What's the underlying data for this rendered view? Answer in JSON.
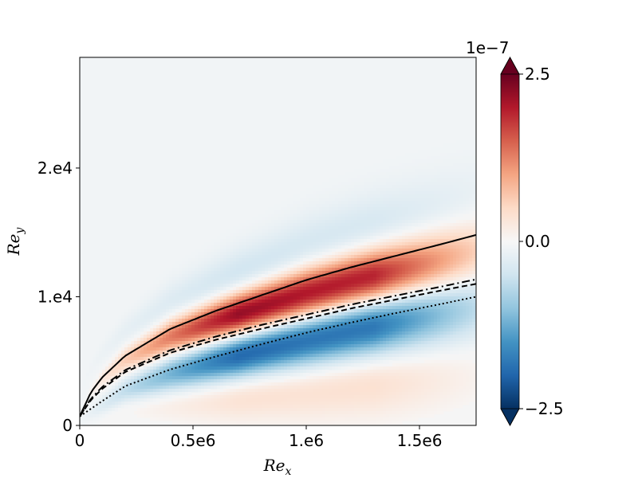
{
  "chart_data": {
    "type": "heatmap",
    "title": "",
    "xlabel": "Re_x",
    "ylabel": "Re_y",
    "xlabel_main": "Re",
    "xlabel_sub": "x",
    "ylabel_main": "Re",
    "ylabel_sub": "y",
    "xlim": [
      0,
      1750000
    ],
    "ylim": [
      0,
      28600
    ],
    "x_ticks": [
      {
        "value": 0,
        "label": "0"
      },
      {
        "value": 500000,
        "label": "0.5e6"
      },
      {
        "value": 1000000,
        "label": "1.e6"
      },
      {
        "value": 1500000,
        "label": "1.5e6"
      }
    ],
    "y_ticks": [
      {
        "value": 0,
        "label": "0"
      },
      {
        "value": 10000,
        "label": "1.e4"
      },
      {
        "value": 20000,
        "label": "2.e4"
      }
    ],
    "colorbar": {
      "colormap": "RdBu_r",
      "range": [
        -2.5e-07,
        2.5e-07
      ],
      "extend": "both",
      "multiplier_label": "1e−7",
      "ticks": [
        {
          "value": 2.5,
          "label": "2.5"
        },
        {
          "value": 0.0,
          "label": "0.0"
        },
        {
          "value": -2.5,
          "label": "−2.5"
        }
      ]
    },
    "field_bands": [
      {
        "sign": "positive",
        "description_value": "upper red band near solid curve",
        "peak_x": 950000,
        "peak_y": 9700,
        "peak_value": 2.5e-07
      },
      {
        "sign": "negative",
        "description_value": "lower blue band below dotted curve",
        "peak_x": 900000,
        "peak_y": 6000,
        "peak_value": -2e-07
      },
      {
        "sign": "positive",
        "description_value": "weak lower red band",
        "peak_x": 1000000,
        "peak_y": 3000,
        "peak_value": 5e-08
      },
      {
        "sign": "negative",
        "description_value": "weak upper blue band",
        "peak_x": 850000,
        "peak_y": 13500,
        "peak_value": -5e-08
      }
    ],
    "series": [
      {
        "style": "solid",
        "x": [
          0,
          50000,
          100000,
          200000,
          400000,
          600000,
          800000,
          1000000,
          1200000,
          1400000,
          1600000,
          1750000
        ],
        "y": [
          700,
          2600,
          3750,
          5400,
          7500,
          8900,
          10100,
          11300,
          12300,
          13200,
          14100,
          14800
        ]
      },
      {
        "style": "dashdot",
        "x": [
          0,
          50000,
          100000,
          200000,
          400000,
          600000,
          800000,
          1000000,
          1200000,
          1400000,
          1600000,
          1750000
        ],
        "y": [
          700,
          2100,
          3000,
          4300,
          5850,
          6900,
          7800,
          8600,
          9400,
          10100,
          10800,
          11350
        ]
      },
      {
        "style": "dashed",
        "x": [
          0,
          50000,
          100000,
          200000,
          400000,
          600000,
          800000,
          1000000,
          1200000,
          1400000,
          1600000,
          1750000
        ],
        "y": [
          700,
          2000,
          2850,
          4150,
          5650,
          6650,
          7500,
          8300,
          9100,
          9800,
          10500,
          11000
        ]
      },
      {
        "style": "dotted",
        "x": [
          0,
          50000,
          100000,
          200000,
          400000,
          600000,
          800000,
          1000000,
          1200000,
          1400000,
          1600000,
          1750000
        ],
        "y": [
          700,
          1300,
          1900,
          3050,
          4350,
          5350,
          6300,
          7200,
          8000,
          8750,
          9450,
          10000
        ]
      }
    ]
  }
}
